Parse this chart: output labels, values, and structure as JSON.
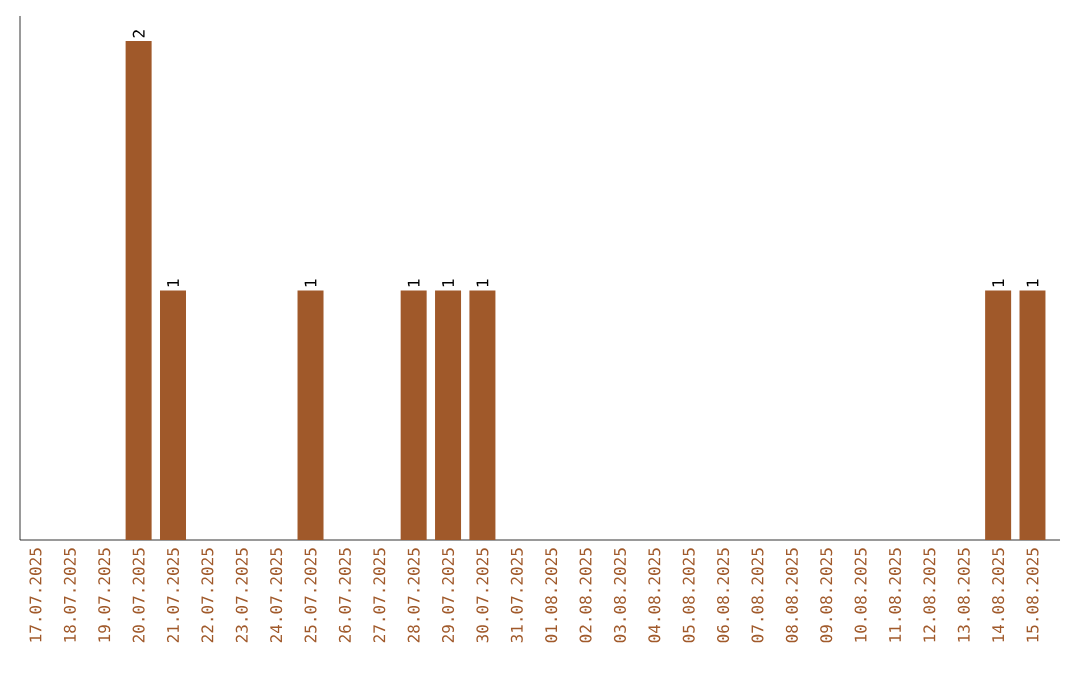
{
  "chart_data": {
    "type": "bar",
    "color": "#a0592a",
    "categories": [
      "17.07.2025",
      "18.07.2025",
      "19.07.2025",
      "20.07.2025",
      "21.07.2025",
      "22.07.2025",
      "23.07.2025",
      "24.07.2025",
      "25.07.2025",
      "26.07.2025",
      "27.07.2025",
      "28.07.2025",
      "29.07.2025",
      "30.07.2025",
      "31.07.2025",
      "01.08.2025",
      "02.08.2025",
      "03.08.2025",
      "04.08.2025",
      "05.08.2025",
      "06.08.2025",
      "07.08.2025",
      "08.08.2025",
      "09.08.2025",
      "10.08.2025",
      "11.08.2025",
      "12.08.2025",
      "13.08.2025",
      "14.08.2025",
      "15.08.2025"
    ],
    "values": [
      0,
      0,
      0,
      2,
      1,
      0,
      0,
      0,
      1,
      0,
      0,
      1,
      1,
      1,
      0,
      0,
      0,
      0,
      0,
      0,
      0,
      0,
      0,
      0,
      0,
      0,
      0,
      0,
      1,
      1
    ],
    "value_labels": [
      null,
      null,
      null,
      "2",
      "1",
      null,
      null,
      null,
      "1",
      null,
      null,
      "1",
      "1",
      "1",
      null,
      null,
      null,
      null,
      null,
      null,
      null,
      null,
      null,
      null,
      null,
      null,
      null,
      null,
      "1",
      "1"
    ],
    "ylim": [
      0,
      2.1
    ],
    "tick_labels": "x"
  }
}
